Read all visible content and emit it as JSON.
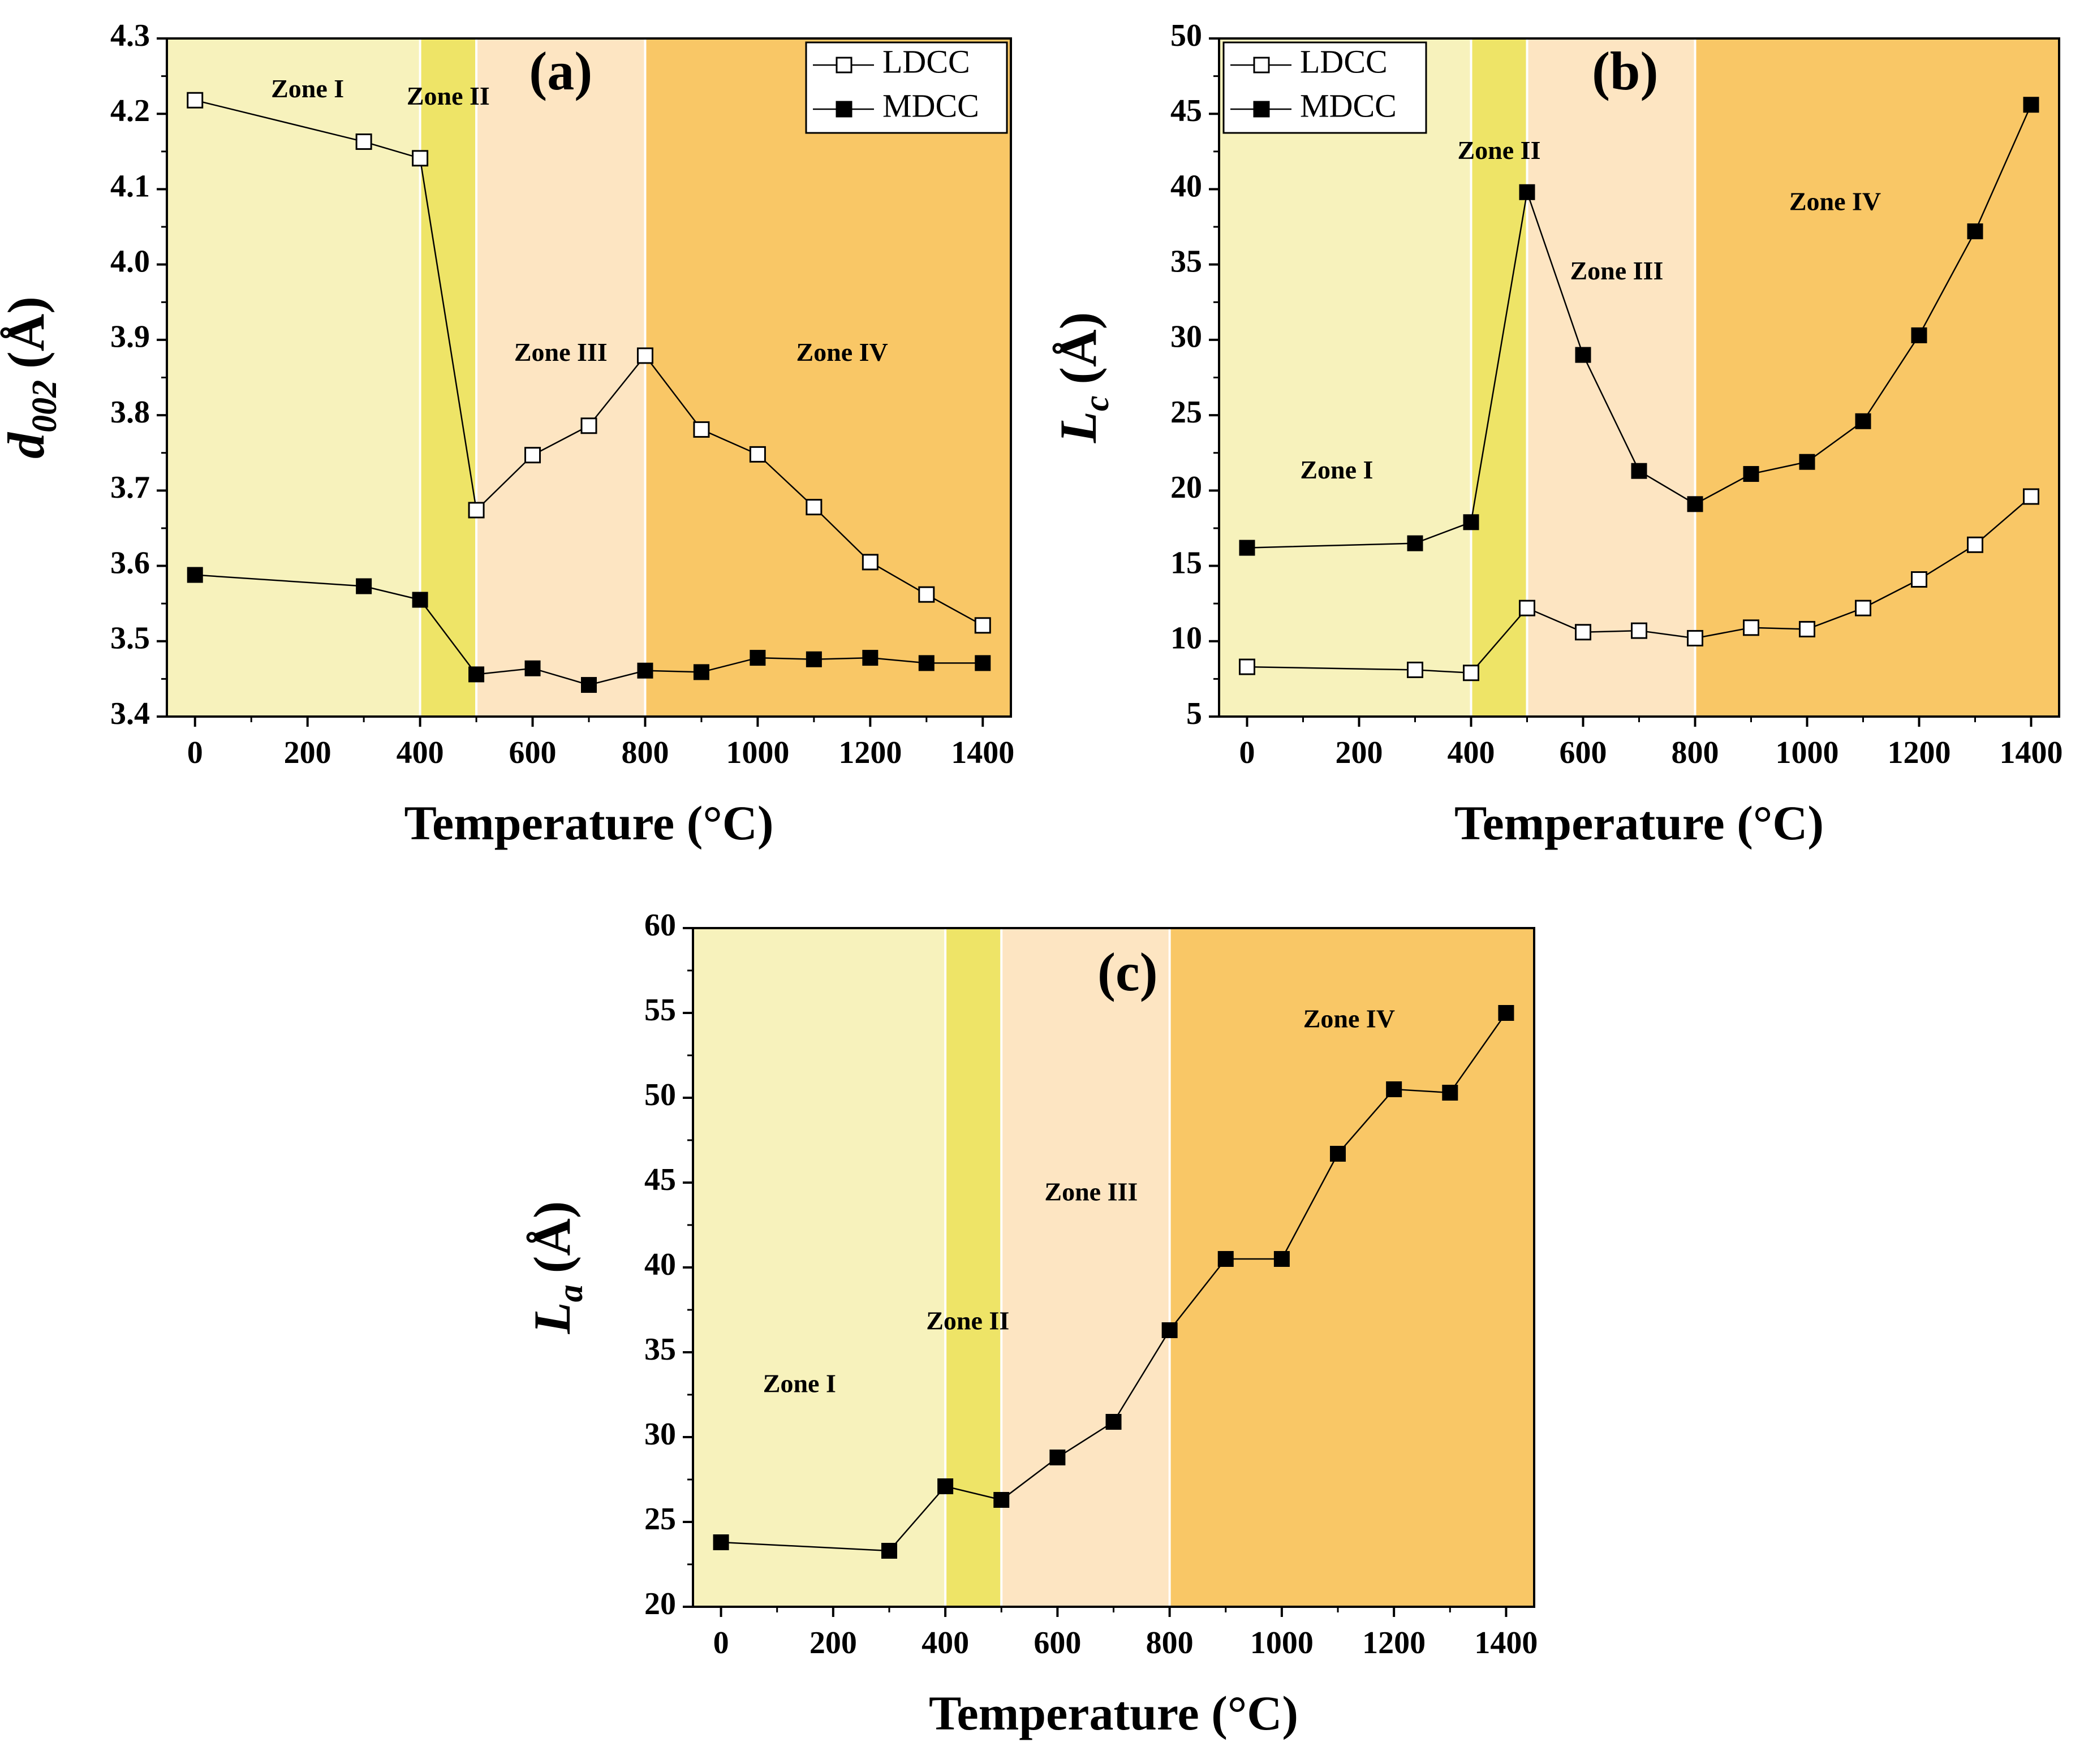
{
  "colors": {
    "zone1": "#F7F2BC",
    "zone2": "#EEE467",
    "zone3": "#FDE5C2",
    "zone4": "#F9C766",
    "line": "#000000",
    "axis": "#000000"
  },
  "chart_data": [
    {
      "id": "a",
      "type": "line",
      "panel_label": "(a)",
      "title": "",
      "xlabel": "Temperature (°C)",
      "ylabel": {
        "main": "d",
        "sub": "002",
        "unit": "(Å)"
      },
      "xlim": [
        -50,
        1450
      ],
      "ylim": [
        3.4,
        4.3
      ],
      "xticks": [
        "0",
        "200",
        "400",
        "600",
        "800",
        "1000",
        "1200",
        "1400"
      ],
      "yticks": [
        "3.4",
        "3.5",
        "3.6",
        "3.7",
        "3.8",
        "3.9",
        "4.0",
        "4.1",
        "4.2",
        "4.3"
      ],
      "zones": [
        {
          "name": "zone1",
          "from": -50,
          "to": 400
        },
        {
          "name": "zone2",
          "from": 400,
          "to": 500
        },
        {
          "name": "zone3",
          "from": 500,
          "to": 800
        },
        {
          "name": "zone4",
          "from": 800,
          "to": 1450
        }
      ],
      "zone_labels": [
        {
          "text": "Zone I",
          "x": 200,
          "y": 4.23
        },
        {
          "text": "Zone II",
          "x": 450,
          "y": 4.22
        },
        {
          "text": "Zone III",
          "x": 650,
          "y": 3.88
        },
        {
          "text": "Zone IV",
          "x": 1150,
          "y": 3.88
        }
      ],
      "legend": {
        "position": "top-right",
        "entries": [
          "LDCC",
          "MDCC"
        ]
      },
      "series": [
        {
          "name": "LDCC",
          "marker": "open-square",
          "x": [
            0,
            300,
            400,
            500,
            600,
            700,
            800,
            900,
            1000,
            1100,
            1200,
            1300,
            1400
          ],
          "values": [
            4.218,
            4.163,
            4.141,
            3.674,
            3.747,
            3.786,
            3.879,
            3.781,
            3.748,
            3.678,
            3.605,
            3.562,
            3.521
          ]
        },
        {
          "name": "MDCC",
          "marker": "filled-square",
          "x": [
            0,
            300,
            400,
            500,
            600,
            700,
            800,
            900,
            1000,
            1100,
            1200,
            1300,
            1400
          ],
          "values": [
            3.588,
            3.573,
            3.555,
            3.456,
            3.464,
            3.442,
            3.461,
            3.459,
            3.478,
            3.476,
            3.478,
            3.471,
            3.471
          ]
        }
      ]
    },
    {
      "id": "b",
      "type": "line",
      "panel_label": "(b)",
      "title": "",
      "xlabel": "Temperature (°C)",
      "ylabel": {
        "main": "L",
        "sub": "c",
        "unit": "(Å)"
      },
      "xlim": [
        -50,
        1450
      ],
      "ylim": [
        5,
        50
      ],
      "xticks": [
        "0",
        "200",
        "400",
        "600",
        "800",
        "1000",
        "1200",
        "1400"
      ],
      "yticks": [
        "5",
        "10",
        "15",
        "20",
        "25",
        "30",
        "35",
        "40",
        "45",
        "50"
      ],
      "zones": [
        {
          "name": "zone1",
          "from": -50,
          "to": 400
        },
        {
          "name": "zone2",
          "from": 400,
          "to": 500
        },
        {
          "name": "zone3",
          "from": 500,
          "to": 800
        },
        {
          "name": "zone4",
          "from": 800,
          "to": 1450
        }
      ],
      "zone_labels": [
        {
          "text": "Zone I",
          "x": 160,
          "y": 21.2
        },
        {
          "text": "Zone II",
          "x": 450,
          "y": 42.4
        },
        {
          "text": "Zone III",
          "x": 660,
          "y": 34.4
        },
        {
          "text": "Zone IV",
          "x": 1050,
          "y": 39.0
        }
      ],
      "legend": {
        "position": "top-left",
        "entries": [
          "LDCC",
          "MDCC"
        ]
      },
      "series": [
        {
          "name": "LDCC",
          "marker": "open-square",
          "x": [
            0,
            300,
            400,
            500,
            600,
            700,
            800,
            900,
            1000,
            1100,
            1200,
            1300,
            1400
          ],
          "values": [
            8.3,
            8.1,
            7.9,
            12.2,
            10.6,
            10.7,
            10.2,
            10.9,
            10.8,
            12.2,
            14.1,
            16.4,
            19.6
          ]
        },
        {
          "name": "MDCC",
          "marker": "filled-square",
          "x": [
            0,
            300,
            400,
            500,
            600,
            700,
            800,
            900,
            1000,
            1100,
            1200,
            1300,
            1400
          ],
          "values": [
            16.2,
            16.5,
            17.9,
            39.8,
            29.0,
            21.3,
            19.1,
            21.1,
            21.9,
            24.6,
            30.3,
            37.2,
            45.6
          ]
        }
      ]
    },
    {
      "id": "c",
      "type": "line",
      "panel_label": "(c)",
      "title": "",
      "xlabel": "Temperature (°C)",
      "ylabel": {
        "main": "L",
        "sub": "a",
        "unit": "(Å)"
      },
      "xlim": [
        -50,
        1450
      ],
      "ylim": [
        20,
        60
      ],
      "xticks": [
        "0",
        "200",
        "400",
        "600",
        "800",
        "1000",
        "1200",
        "1400"
      ],
      "yticks": [
        "20",
        "25",
        "30",
        "35",
        "40",
        "45",
        "50",
        "55",
        "60"
      ],
      "zones": [
        {
          "name": "zone1",
          "from": -50,
          "to": 400
        },
        {
          "name": "zone2",
          "from": 400,
          "to": 500
        },
        {
          "name": "zone3",
          "from": 500,
          "to": 800
        },
        {
          "name": "zone4",
          "from": 800,
          "to": 1450
        }
      ],
      "zone_labels": [
        {
          "text": "Zone I",
          "x": 140,
          "y": 33.0
        },
        {
          "text": "Zone II",
          "x": 440,
          "y": 36.7
        },
        {
          "text": "Zone III",
          "x": 660,
          "y": 44.3
        },
        {
          "text": "Zone IV",
          "x": 1120,
          "y": 54.5
        }
      ],
      "legend": null,
      "series": [
        {
          "name": "MDCC",
          "marker": "filled-square",
          "x": [
            0,
            300,
            400,
            500,
            600,
            700,
            800,
            900,
            1000,
            1100,
            1200,
            1300,
            1400
          ],
          "values": [
            23.8,
            23.3,
            27.1,
            26.3,
            28.8,
            30.9,
            36.3,
            40.5,
            40.5,
            46.7,
            50.5,
            50.3,
            55.0
          ]
        }
      ]
    }
  ]
}
